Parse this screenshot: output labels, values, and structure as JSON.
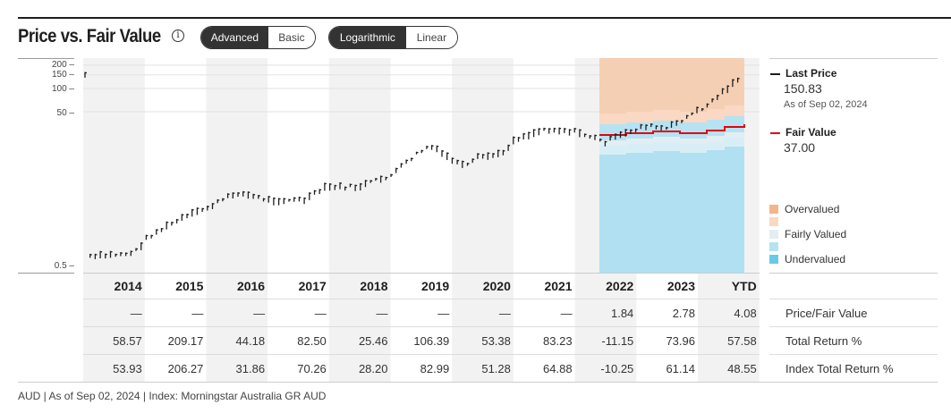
{
  "header": {
    "title": "Price vs. Fair Value",
    "info_icon": "i",
    "view_toggle": {
      "options": [
        "Advanced",
        "Basic"
      ],
      "selected": "Advanced"
    },
    "scale_toggle": {
      "options": [
        "Logarithmic",
        "Linear"
      ],
      "selected": "Logarithmic"
    }
  },
  "colors": {
    "price": "#1e1e1e",
    "fair_value": "#e8000b",
    "overvalued": "#f5b48a",
    "overvalued_light": "#fad8c3",
    "fairly_valued": "#e3eef2",
    "undervalued_light": "#b5e3f3",
    "undervalued": "#69c9e8",
    "shade": "#f2f2f2"
  },
  "legend": {
    "last_price_label": "Last Price",
    "last_price_value": "150.83",
    "last_price_date": "As of Sep 02, 2024",
    "fair_value_label": "Fair Value",
    "fair_value_value": "37.00",
    "bands": [
      "Overvalued",
      "",
      "Fairly Valued",
      "",
      "Undervalued"
    ]
  },
  "table": {
    "columns": [
      "2014",
      "2015",
      "2016",
      "2017",
      "2018",
      "2019",
      "2020",
      "2021",
      "2022",
      "2023",
      "YTD"
    ],
    "rows": [
      {
        "label": "Price/Fair Value",
        "values": [
          "—",
          "—",
          "—",
          "—",
          "—",
          "—",
          "—",
          "—",
          "1.84",
          "2.78",
          "4.08"
        ]
      },
      {
        "label": "Total Return %",
        "values": [
          "58.57",
          "209.17",
          "44.18",
          "82.50",
          "25.46",
          "106.39",
          "53.38",
          "83.23",
          "-11.15",
          "73.96",
          "57.58"
        ]
      },
      {
        "label": "Index Total Return %",
        "values": [
          "53.93",
          "206.27",
          "31.86",
          "70.26",
          "28.20",
          "82.99",
          "51.28",
          "64.88",
          "-10.25",
          "61.14",
          "48.55"
        ]
      }
    ]
  },
  "footer": "AUD | As of Sep 02, 2024 | Index: Morningstar Australia GR AUD",
  "chart_data": {
    "type": "line",
    "title": "Price vs. Fair Value",
    "scale": "log",
    "y_ticks": [
      "200",
      "150",
      "100",
      "50",
      "0.5"
    ],
    "ylim": [
      0.5,
      230
    ],
    "categories": [
      "2014",
      "2015",
      "2016",
      "2017",
      "2018",
      "2019",
      "2020",
      "2021",
      "2022",
      "2023",
      "YTD"
    ],
    "series": [
      {
        "name": "Last Price",
        "values": [
          0.7,
          1.3,
          3.3,
          4.2,
          6.2,
          15.6,
          27.0,
          42.0,
          42.0,
          66.0,
          150.83
        ]
      },
      {
        "name": "Fair Value",
        "values": [
          null,
          null,
          null,
          null,
          null,
          null,
          null,
          null,
          22.0,
          27.0,
          37.0
        ]
      }
    ],
    "legend": [
      "Last Price",
      "Fair Value",
      "Overvalued",
      "Fairly Valued",
      "Undervalued"
    ],
    "legend_position": "right"
  }
}
